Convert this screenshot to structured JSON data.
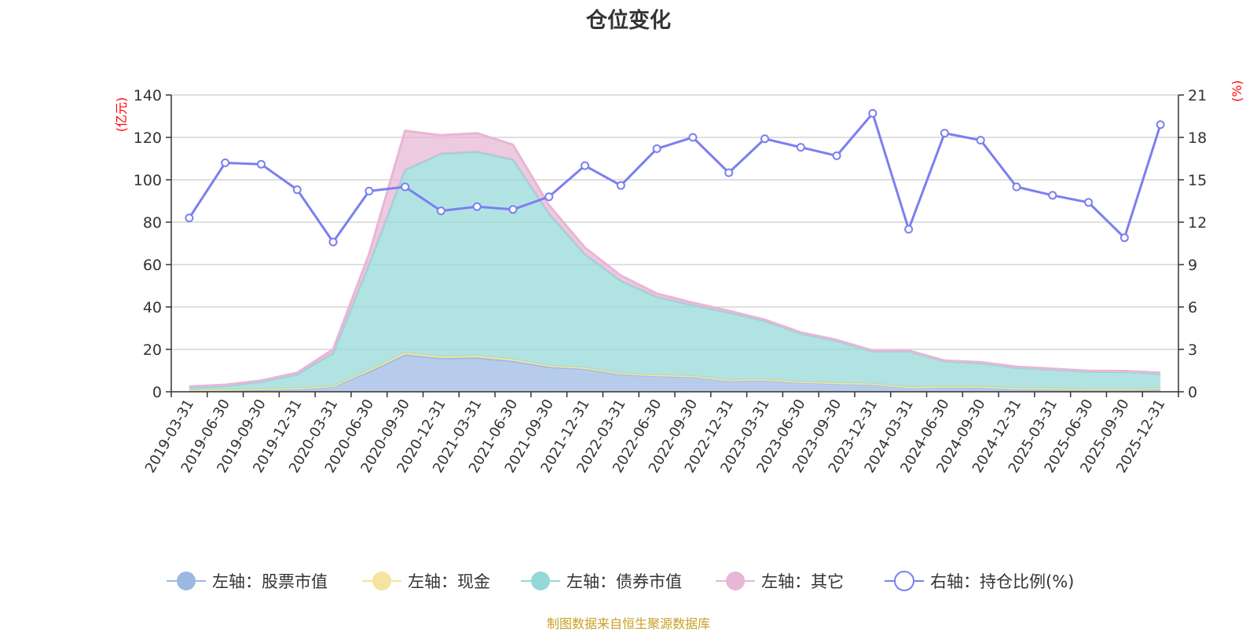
{
  "chart_data": {
    "type": "area",
    "title": "仓位变化",
    "left_axis": {
      "unit": "(亿元)",
      "range": [
        0,
        140
      ],
      "ticks": [
        "0",
        "20",
        "40",
        "60",
        "80",
        "100",
        "120",
        "140"
      ]
    },
    "right_axis": {
      "unit": "(%)",
      "range": [
        0,
        21
      ],
      "ticks": [
        "0",
        "3",
        "6",
        "9",
        "12",
        "15",
        "18",
        "21"
      ]
    },
    "categories": [
      "2019-03-31",
      "2019-06-30",
      "2019-09-30",
      "2019-12-31",
      "2020-03-31",
      "2020-06-30",
      "2020-09-30",
      "2020-12-31",
      "2021-03-31",
      "2021-06-30",
      "2021-09-30",
      "2021-12-31",
      "2022-03-31",
      "2022-06-30",
      "2022-09-30",
      "2022-12-31",
      "2023-03-31",
      "2023-06-30",
      "2023-09-30",
      "2023-12-31",
      "2024-03-31",
      "2024-06-30",
      "2024-09-30",
      "2024-12-31",
      "2025-03-31",
      "2025-06-30",
      "2025-09-30",
      "2025-12-31"
    ],
    "series": [
      {
        "name": "左轴：股票市值",
        "axis": "left",
        "color": "#9bb8e3",
        "values": [
          0.3,
          0.7,
          0.9,
          1.5,
          2.5,
          9.5,
          17.5,
          15.8,
          16.1,
          14.5,
          11.7,
          10.8,
          8.2,
          7.6,
          7.1,
          5.4,
          5.6,
          4.5,
          4.0,
          3.6,
          2.0,
          2.3,
          2.2,
          1.5,
          1.4,
          1.1,
          1.0,
          1.5
        ]
      },
      {
        "name": "左轴：现金",
        "axis": "left",
        "color": "#f5e3a0",
        "values": [
          0.5,
          0.3,
          0.4,
          0.2,
          0.2,
          0.8,
          0.9,
          0.8,
          0.9,
          0.8,
          0.6,
          0.5,
          0.4,
          0.3,
          0.3,
          0.2,
          0.2,
          0.2,
          0.2,
          0.2,
          0.2,
          0.2,
          0.2,
          0.2,
          0.2,
          0.2,
          0.2,
          0.2
        ]
      },
      {
        "name": "左轴：债券市值",
        "axis": "left",
        "color": "#94d8d8",
        "values": [
          1.2,
          1.7,
          3.4,
          6.5,
          15.5,
          49.7,
          86.2,
          95.7,
          96.2,
          94.2,
          71.7,
          53.5,
          43.7,
          36.8,
          33.4,
          31.8,
          27.6,
          22.7,
          19.8,
          15.2,
          16.9,
          11.9,
          11.1,
          9.6,
          8.9,
          8.2,
          8.2,
          6.8
        ]
      },
      {
        "name": "左轴：其它",
        "axis": "left",
        "color": "#e8b6d6",
        "values": [
          0.5,
          0.6,
          0.6,
          0.8,
          1.8,
          5.0,
          18.5,
          8.7,
          8.8,
          7.0,
          4.0,
          3.2,
          2.5,
          1.6,
          1.2,
          0.8,
          0.6,
          0.6,
          0.5,
          0.4,
          0.4,
          0.3,
          0.5,
          0.5,
          0.4,
          0.4,
          0.4,
          0.5
        ]
      },
      {
        "name": "右轴：持仓比例(%)",
        "axis": "right",
        "color": "#7b7ff0",
        "values": [
          12.3,
          16.2,
          16.1,
          14.3,
          10.6,
          14.2,
          14.5,
          12.8,
          13.1,
          12.9,
          13.8,
          16.0,
          14.6,
          17.2,
          18.0,
          15.5,
          17.9,
          17.3,
          16.7,
          19.7,
          11.5,
          18.3,
          17.8,
          14.5,
          13.9,
          13.4,
          10.9,
          18.9
        ]
      }
    ]
  },
  "source_note": "制图数据来自恒生聚源数据库"
}
